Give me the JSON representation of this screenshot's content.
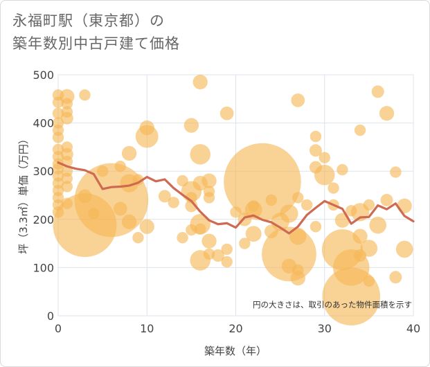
{
  "chart_data": {
    "type": "scatter",
    "title_line1": "永福町駅（東京都）の",
    "title_line2": "築年数別中古戸建て価格",
    "xlabel": "築年数（年）",
    "ylabel": "坪（3.3㎡）単価（万円）",
    "xlim": [
      0,
      40
    ],
    "ylim": [
      0,
      500
    ],
    "xticks": [
      "0",
      "10",
      "20",
      "30",
      "40"
    ],
    "yticks": [
      "0",
      "100",
      "200",
      "300",
      "400",
      "500"
    ],
    "note": "円の大きさは、取引のあった物件面積を示す",
    "colors": {
      "bubble": "#f5b756",
      "line": "#cf6a52",
      "grid": "#dce4ec"
    },
    "bubbles": [
      {
        "x": 0,
        "y": 458,
        "s": 1
      },
      {
        "x": 0,
        "y": 443,
        "s": 1
      },
      {
        "x": 0,
        "y": 420,
        "s": 1
      },
      {
        "x": 0,
        "y": 400,
        "s": 1
      },
      {
        "x": 0,
        "y": 385,
        "s": 1
      },
      {
        "x": 0,
        "y": 370,
        "s": 1
      },
      {
        "x": 0,
        "y": 345,
        "s": 1
      },
      {
        "x": 0,
        "y": 330,
        "s": 1
      },
      {
        "x": 0,
        "y": 315,
        "s": 1
      },
      {
        "x": 0,
        "y": 305,
        "s": 1
      },
      {
        "x": 0,
        "y": 290,
        "s": 1
      },
      {
        "x": 0,
        "y": 275,
        "s": 1
      },
      {
        "x": 0,
        "y": 260,
        "s": 1
      },
      {
        "x": 0,
        "y": 245,
        "s": 1
      },
      {
        "x": 0,
        "y": 230,
        "s": 1
      },
      {
        "x": 0,
        "y": 215,
        "s": 1
      },
      {
        "x": 1,
        "y": 455,
        "s": 1.3
      },
      {
        "x": 1,
        "y": 440,
        "s": 1
      },
      {
        "x": 1,
        "y": 423,
        "s": 1
      },
      {
        "x": 1,
        "y": 410,
        "s": 1.1
      },
      {
        "x": 1,
        "y": 350,
        "s": 1
      },
      {
        "x": 1,
        "y": 335,
        "s": 1.1
      },
      {
        "x": 1,
        "y": 320,
        "s": 1
      },
      {
        "x": 1,
        "y": 300,
        "s": 1
      },
      {
        "x": 1,
        "y": 285,
        "s": 1
      },
      {
        "x": 1,
        "y": 268,
        "s": 1
      },
      {
        "x": 1,
        "y": 233,
        "s": 1
      },
      {
        "x": 3,
        "y": 458,
        "s": 1
      },
      {
        "x": 3,
        "y": 188,
        "s": 5.6
      },
      {
        "x": 3,
        "y": 248,
        "s": 1.2
      },
      {
        "x": 4,
        "y": 212,
        "s": 1
      },
      {
        "x": 5,
        "y": 300,
        "s": 1
      },
      {
        "x": 6,
        "y": 240,
        "s": 6.5
      },
      {
        "x": 7,
        "y": 222,
        "s": 1.2
      },
      {
        "x": 7,
        "y": 310,
        "s": 1
      },
      {
        "x": 8,
        "y": 337,
        "s": 1.3
      },
      {
        "x": 8,
        "y": 275,
        "s": 1.6
      },
      {
        "x": 8,
        "y": 195,
        "s": 1.3
      },
      {
        "x": 9,
        "y": 162,
        "s": 1
      },
      {
        "x": 9,
        "y": 282,
        "s": 1
      },
      {
        "x": 10,
        "y": 390,
        "s": 1.3
      },
      {
        "x": 10,
        "y": 372,
        "s": 2
      },
      {
        "x": 10,
        "y": 185,
        "s": 1.3
      },
      {
        "x": 12,
        "y": 248,
        "s": 1.1
      },
      {
        "x": 13,
        "y": 235,
        "s": 1
      },
      {
        "x": 14,
        "y": 280,
        "s": 1
      },
      {
        "x": 14,
        "y": 162,
        "s": 1
      },
      {
        "x": 15,
        "y": 395,
        "s": 1.3
      },
      {
        "x": 15,
        "y": 258,
        "s": 1.8
      },
      {
        "x": 15,
        "y": 245,
        "s": 1
      },
      {
        "x": 15,
        "y": 228,
        "s": 1.1
      },
      {
        "x": 15,
        "y": 178,
        "s": 1
      },
      {
        "x": 16,
        "y": 485,
        "s": 1.3
      },
      {
        "x": 16,
        "y": 335,
        "s": 1.8
      },
      {
        "x": 16,
        "y": 275,
        "s": 1.3
      },
      {
        "x": 16,
        "y": 190,
        "s": 1.8
      },
      {
        "x": 16,
        "y": 180,
        "s": 1
      },
      {
        "x": 16,
        "y": 115,
        "s": 1.8
      },
      {
        "x": 17,
        "y": 280,
        "s": 1.3
      },
      {
        "x": 17,
        "y": 258,
        "s": 1
      },
      {
        "x": 17,
        "y": 245,
        "s": 1
      },
      {
        "x": 17,
        "y": 155,
        "s": 1.3
      },
      {
        "x": 17,
        "y": 128,
        "s": 1
      },
      {
        "x": 18,
        "y": 125,
        "s": 1.1
      },
      {
        "x": 19,
        "y": 420,
        "s": 1.2
      },
      {
        "x": 19,
        "y": 138,
        "s": 1
      },
      {
        "x": 19,
        "y": 112,
        "s": 1
      },
      {
        "x": 20,
        "y": 215,
        "s": 1
      },
      {
        "x": 21,
        "y": 200,
        "s": 1.2
      },
      {
        "x": 21,
        "y": 150,
        "s": 1
      },
      {
        "x": 22,
        "y": 220,
        "s": 1.5
      },
      {
        "x": 22,
        "y": 228,
        "s": 1
      },
      {
        "x": 22,
        "y": 170,
        "s": 1.4
      },
      {
        "x": 23,
        "y": 278,
        "s": 6.8
      },
      {
        "x": 24,
        "y": 240,
        "s": 1
      },
      {
        "x": 24,
        "y": 175,
        "s": 1.2
      },
      {
        "x": 25,
        "y": 195,
        "s": 1.6
      },
      {
        "x": 26,
        "y": 212,
        "s": 1.6
      },
      {
        "x": 26,
        "y": 128,
        "s": 4.8
      },
      {
        "x": 26,
        "y": 103,
        "s": 1.3
      },
      {
        "x": 27,
        "y": 447,
        "s": 1.2
      },
      {
        "x": 27,
        "y": 245,
        "s": 1
      },
      {
        "x": 27,
        "y": 165,
        "s": 1.5
      },
      {
        "x": 27,
        "y": 95,
        "s": 1
      },
      {
        "x": 27,
        "y": 78,
        "s": 1.3
      },
      {
        "x": 28,
        "y": 230,
        "s": 1
      },
      {
        "x": 29,
        "y": 372,
        "s": 1
      },
      {
        "x": 29,
        "y": 343,
        "s": 1.1
      },
      {
        "x": 29,
        "y": 308,
        "s": 1.1
      },
      {
        "x": 29,
        "y": 185,
        "s": 1
      },
      {
        "x": 30,
        "y": 292,
        "s": 1.8
      },
      {
        "x": 30,
        "y": 328,
        "s": 1
      },
      {
        "x": 31,
        "y": 265,
        "s": 1
      },
      {
        "x": 31,
        "y": 230,
        "s": 1
      },
      {
        "x": 32,
        "y": 303,
        "s": 1
      },
      {
        "x": 32,
        "y": 198,
        "s": 1.3
      },
      {
        "x": 32,
        "y": 137,
        "s": 3.6
      },
      {
        "x": 33,
        "y": 218,
        "s": 1
      },
      {
        "x": 33,
        "y": 100,
        "s": 3.2
      },
      {
        "x": 33,
        "y": 40,
        "s": 5.1
      },
      {
        "x": 34,
        "y": 385,
        "s": 1
      },
      {
        "x": 34,
        "y": 215,
        "s": 1.6
      },
      {
        "x": 34,
        "y": 165,
        "s": 1.3
      },
      {
        "x": 34,
        "y": 125,
        "s": 1.1
      },
      {
        "x": 35,
        "y": 230,
        "s": 1
      },
      {
        "x": 35,
        "y": 140,
        "s": 1.5
      },
      {
        "x": 35,
        "y": 72,
        "s": 1
      },
      {
        "x": 36,
        "y": 465,
        "s": 1.1
      },
      {
        "x": 36,
        "y": 188,
        "s": 1.5
      },
      {
        "x": 37,
        "y": 420,
        "s": 1.3
      },
      {
        "x": 37,
        "y": 240,
        "s": 1.1
      },
      {
        "x": 38,
        "y": 298,
        "s": 1
      },
      {
        "x": 38,
        "y": 80,
        "s": 1.1
      },
      {
        "x": 39,
        "y": 228,
        "s": 1.3
      },
      {
        "x": 39,
        "y": 138,
        "s": 1.5
      }
    ],
    "line": {
      "x": [
        0,
        1,
        2,
        3,
        4,
        5,
        6,
        7,
        8,
        9,
        10,
        11,
        12,
        13,
        14,
        15,
        16,
        17,
        18,
        19,
        20,
        21,
        22,
        23,
        24,
        25,
        26,
        27,
        28,
        29,
        30,
        31,
        32,
        33,
        34,
        35,
        36,
        37,
        38,
        39,
        40
      ],
      "y": [
        318,
        310,
        305,
        302,
        294,
        263,
        267,
        268,
        270,
        276,
        288,
        279,
        283,
        265,
        251,
        238,
        216,
        198,
        190,
        192,
        183,
        204,
        208,
        199,
        194,
        183,
        171,
        185,
        209,
        224,
        238,
        230,
        222,
        191,
        204,
        205,
        229,
        221,
        233,
        207,
        196
      ]
    }
  }
}
